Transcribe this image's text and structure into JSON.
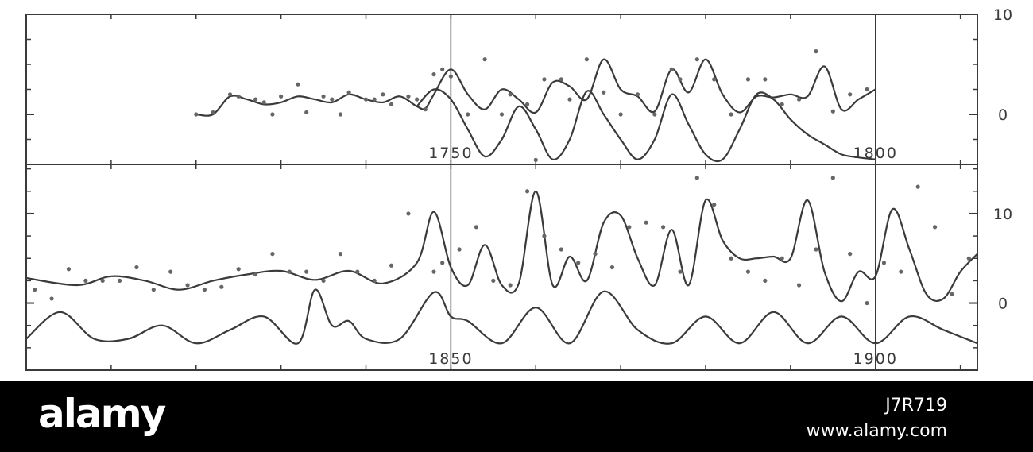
{
  "chart_data": [
    {
      "type": "line",
      "title": "",
      "xlabel": "",
      "ylabel": "",
      "xlim": [
        1700,
        1812
      ],
      "ylim": [
        -5,
        10
      ],
      "x_ticks": [
        1750,
        1800
      ],
      "y_ticks": [
        0,
        10
      ],
      "grid": false,
      "legend": "none",
      "series": [
        {
          "style": "line",
          "x": [
            1720,
            1722,
            1724,
            1726,
            1728,
            1730,
            1732,
            1734,
            1736,
            1738,
            1740,
            1742,
            1744,
            1746,
            1747,
            1748,
            1750,
            1752,
            1754,
            1756,
            1758,
            1760,
            1762,
            1764,
            1766,
            1768,
            1770,
            1772,
            1774,
            1776,
            1778,
            1780,
            1782,
            1784,
            1786,
            1788,
            1790,
            1792,
            1794,
            1796,
            1798,
            1800
          ],
          "y": [
            0,
            0,
            1.8,
            1.5,
            1,
            1.2,
            1.8,
            1.5,
            1.2,
            2,
            1.5,
            1.2,
            1.8,
            0.8,
            0.6,
            2,
            4.5,
            2,
            0.5,
            2.5,
            1.5,
            0.2,
            3.2,
            2.8,
            1.5,
            5.5,
            2.5,
            1.8,
            0.3,
            4.5,
            2.2,
            5.5,
            2,
            0.2,
            1.8,
            1.7,
            2,
            1.8,
            4.8,
            0.5,
            1.5,
            2.5
          ]
        },
        {
          "style": "line",
          "x": [
            1746,
            1748,
            1750,
            1752,
            1754,
            1756,
            1758,
            1760,
            1762,
            1764,
            1766,
            1768,
            1770,
            1772,
            1774,
            1776,
            1778,
            1780,
            1782,
            1784,
            1786,
            1788,
            1790,
            1792,
            1794,
            1796,
            1798,
            1800
          ],
          "y": [
            0.8,
            2.5,
            1.5,
            -1.5,
            -4.2,
            -2.5,
            0.8,
            -1.5,
            -4.5,
            -2.5,
            2.3,
            0,
            -2.5,
            -4.5,
            -2.5,
            2,
            -1,
            -4,
            -4.5,
            -1.5,
            2,
            1.5,
            -0.5,
            -2,
            -3,
            -4,
            -4.3,
            -4.5
          ]
        },
        {
          "style": "points",
          "x": [
            1720,
            1722,
            1724,
            1725,
            1727,
            1728,
            1729,
            1730,
            1732,
            1733,
            1735,
            1736,
            1737,
            1738,
            1740,
            1741,
            1742,
            1743,
            1745,
            1746,
            1747,
            1748,
            1749,
            1750,
            1752,
            1754,
            1756,
            1757,
            1759,
            1761,
            1763,
            1764,
            1766,
            1768,
            1770,
            1772,
            1774,
            1776,
            1777,
            1779,
            1781,
            1783,
            1785,
            1787,
            1789,
            1791,
            1793,
            1795,
            1797,
            1799
          ],
          "y": [
            0,
            0.2,
            2,
            1.8,
            1.5,
            1.2,
            0,
            1.8,
            3,
            0.2,
            1.8,
            1.5,
            0,
            2.2,
            1.5,
            1.5,
            2,
            1,
            1.8,
            1.5,
            0.5,
            4,
            4.5,
            3.8,
            0,
            5.5,
            0,
            2,
            1,
            3.5,
            3.5,
            1.5,
            5.5,
            2.2,
            0,
            2,
            0,
            4.5,
            3.5,
            5.5,
            3.5,
            0,
            3.5,
            3.5,
            1,
            1.5,
            6.3,
            0.3,
            2,
            2.5
          ]
        }
      ]
    },
    {
      "type": "line",
      "title": "",
      "xlabel": "",
      "ylabel": "",
      "xlim": [
        1800,
        1912
      ],
      "ylim": [
        -7.5,
        15.5
      ],
      "x_ticks": [
        1850,
        1900
      ],
      "y_ticks": [
        0,
        10
      ],
      "grid": false,
      "legend": "none",
      "series": [
        {
          "style": "line",
          "x": [
            1800,
            1806,
            1810,
            1814,
            1818,
            1822,
            1826,
            1830,
            1834,
            1838,
            1842,
            1846,
            1848,
            1850,
            1852,
            1854,
            1856,
            1858,
            1860,
            1862,
            1864,
            1866,
            1868,
            1870,
            1872,
            1874,
            1876,
            1878,
            1880,
            1882,
            1884,
            1886,
            1888,
            1890,
            1892,
            1894,
            1896,
            1898,
            1900,
            1902,
            1904,
            1906,
            1908,
            1910,
            1912
          ],
          "y": [
            2.8,
            2,
            3,
            2.5,
            1.5,
            2.5,
            3.2,
            3.6,
            2.6,
            3.6,
            2.2,
            4.5,
            10.2,
            4,
            2,
            6.5,
            2,
            2.2,
            12.5,
            2,
            5.2,
            2.5,
            9,
            9.8,
            5,
            2,
            8.2,
            2,
            11.5,
            7,
            5,
            5,
            5.2,
            5,
            11.5,
            3.5,
            0.2,
            3.5,
            3,
            10.5,
            6,
            1,
            0.5,
            3.5,
            5.5
          ]
        },
        {
          "style": "line",
          "x": [
            1800,
            1804,
            1808,
            1812,
            1816,
            1820,
            1824,
            1828,
            1832,
            1834,
            1836,
            1838,
            1840,
            1844,
            1848,
            1850,
            1852,
            1856,
            1860,
            1864,
            1868,
            1872,
            1876,
            1880,
            1884,
            1888,
            1892,
            1896,
            1900,
            1904,
            1908,
            1912
          ],
          "y": [
            -4,
            -1,
            -4,
            -4,
            -2.5,
            -4.5,
            -3,
            -1.5,
            -4.5,
            1.5,
            -2.5,
            -2,
            -4,
            -4,
            1.2,
            -1.5,
            -2,
            -4.5,
            -0.5,
            -4.5,
            1.3,
            -3,
            -4.5,
            -1.5,
            -4.5,
            -1,
            -4.5,
            -1.5,
            -4.5,
            -1.5,
            -3,
            -4.5
          ]
        },
        {
          "style": "points",
          "x": [
            1801,
            1803,
            1805,
            1807,
            1809,
            1811,
            1813,
            1815,
            1817,
            1819,
            1821,
            1823,
            1825,
            1827,
            1829,
            1831,
            1833,
            1835,
            1837,
            1839,
            1841,
            1843,
            1845,
            1848,
            1849,
            1851,
            1853,
            1855,
            1857,
            1859,
            1860,
            1861,
            1863,
            1865,
            1867,
            1869,
            1871,
            1873,
            1875,
            1877,
            1879,
            1881,
            1883,
            1885,
            1887,
            1889,
            1891,
            1893,
            1895,
            1897,
            1899,
            1901,
            1903,
            1905,
            1907,
            1909,
            1911
          ],
          "y": [
            1.5,
            0.5,
            3.8,
            2.5,
            2.5,
            2.5,
            4,
            1.5,
            3.5,
            2,
            1.5,
            1.8,
            3.8,
            3.2,
            5.5,
            3.5,
            3.5,
            2.5,
            5.5,
            3.5,
            2.5,
            4.2,
            10,
            3.5,
            4.5,
            6,
            8.5,
            2.5,
            2,
            12.5,
            16,
            7.5,
            6,
            4.5,
            5.5,
            4,
            8.5,
            9,
            8.5,
            3.5,
            14,
            11,
            5,
            3.5,
            2.5,
            5,
            2,
            6,
            14,
            5.5,
            0,
            4.5,
            3.5,
            13,
            8.5,
            1,
            5
          ]
        }
      ]
    }
  ],
  "footer": {
    "brand": "alamy",
    "image_code": "J7R719",
    "url": "www.alamy.com"
  }
}
